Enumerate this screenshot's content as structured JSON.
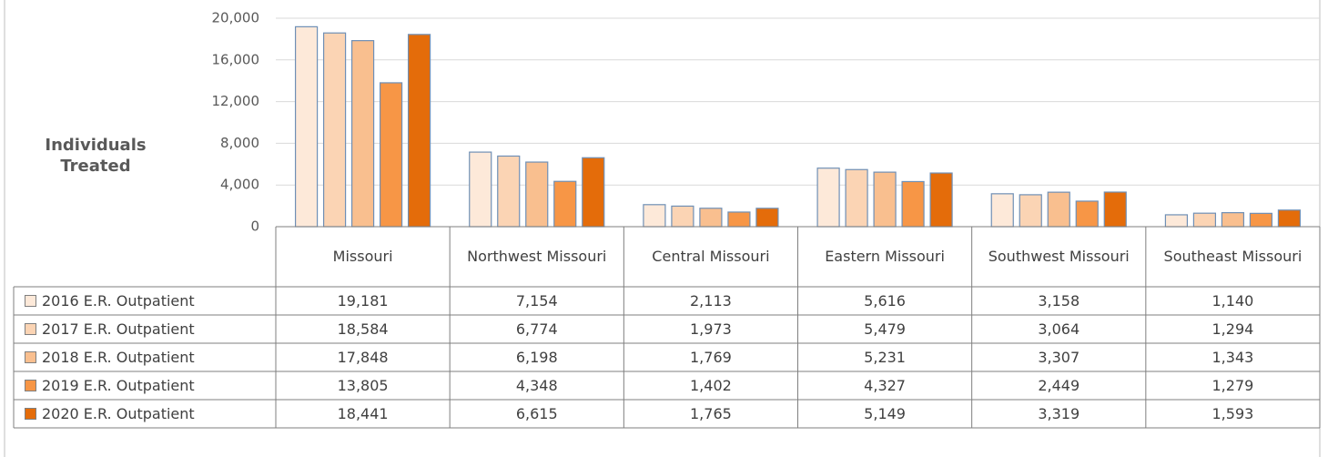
{
  "chart_data": {
    "type": "bar",
    "ylabel": "Individuals Treated",
    "categories": [
      "Missouri",
      "Northwest Missouri",
      "Central Missouri",
      "Eastern Missouri",
      "Southwest Missouri",
      "Southeast Missouri"
    ],
    "series": [
      {
        "name": "2016 E.R. Outpatient",
        "color": "#fde9d9",
        "values": [
          19181,
          7154,
          2113,
          5616,
          3158,
          1140
        ],
        "value_labels": [
          "19,181",
          "7,154",
          "2,113",
          "5,616",
          "3,158",
          "1,140"
        ]
      },
      {
        "name": "2017 E.R. Outpatient",
        "color": "#fbd4b4",
        "values": [
          18584,
          6774,
          1973,
          5479,
          3064,
          1294
        ],
        "value_labels": [
          "18,584",
          "6,774",
          "1,973",
          "5,479",
          "3,064",
          "1,294"
        ]
      },
      {
        "name": "2018 E.R. Outpatient",
        "color": "#f9bf8f",
        "values": [
          17848,
          6198,
          1769,
          5231,
          3307,
          1343
        ],
        "value_labels": [
          "17,848",
          "6,198",
          "1,769",
          "5,231",
          "3,307",
          "1,343"
        ]
      },
      {
        "name": "2019 E.R. Outpatient",
        "color": "#f79646",
        "values": [
          13805,
          4348,
          1402,
          4327,
          2449,
          1279
        ],
        "value_labels": [
          "13,805",
          "4,348",
          "1,402",
          "4,327",
          "2,449",
          "1,279"
        ]
      },
      {
        "name": "2020 E.R. Outpatient",
        "color": "#e46c0a",
        "values": [
          18441,
          6615,
          1765,
          5149,
          3319,
          1593
        ],
        "value_labels": [
          "18,441",
          "6,615",
          "1,765",
          "5,149",
          "3,319",
          "1,593"
        ]
      }
    ],
    "ylim": [
      0,
      20000
    ],
    "yticks": [
      0,
      {
        "value": 4000,
        "label": "4,000"
      },
      {
        "value": 8000,
        "label": "8,000"
      },
      {
        "value": 12000,
        "label": "12,000"
      },
      {
        "value": 16000,
        "label": "16,000"
      },
      {
        "value": 20000,
        "label": "20,000"
      }
    ],
    "grid": true
  }
}
